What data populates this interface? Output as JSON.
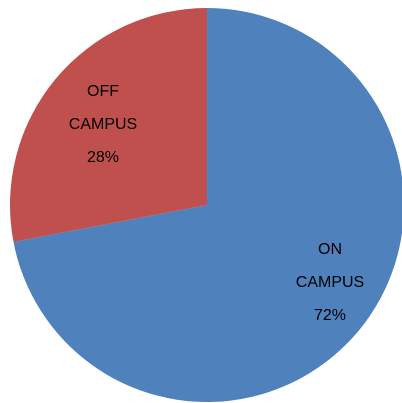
{
  "chart_data": {
    "type": "pie",
    "categories": [
      "ON CAMPUS",
      "OFF CAMPUS"
    ],
    "values": [
      72,
      28
    ],
    "value_labels": [
      "72%",
      "28%"
    ],
    "colors": [
      "#4f81bd",
      "#c0504d"
    ]
  }
}
